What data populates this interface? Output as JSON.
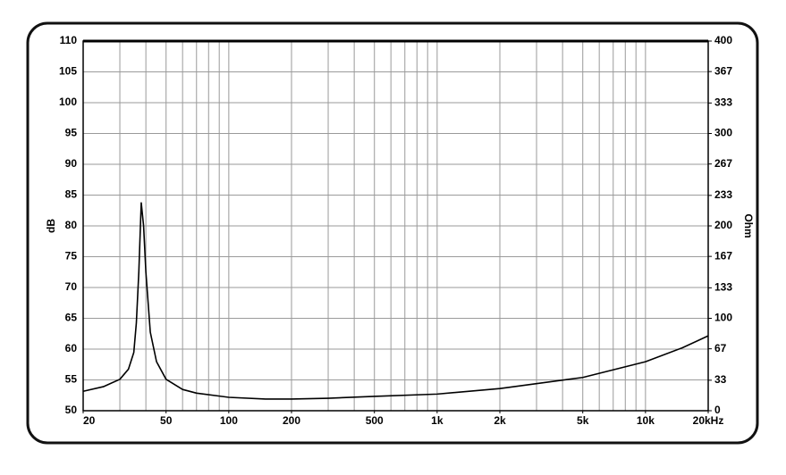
{
  "chart_data": {
    "type": "line",
    "y_label": "dB",
    "y2_label": "Ohm",
    "xscale": "log",
    "xlim": [
      20,
      20000
    ],
    "xticks": [
      20,
      50,
      100,
      200,
      500,
      {
        "value": 1000,
        "label": "1k"
      },
      {
        "value": 2000,
        "label": "2k"
      },
      {
        "value": 5000,
        "label": "5k"
      },
      {
        "value": 10000,
        "label": "10k"
      },
      {
        "value": 20000,
        "label": "20kHz"
      }
    ],
    "xgrid": [
      20,
      30,
      40,
      50,
      60,
      70,
      80,
      90,
      100,
      200,
      300,
      400,
      500,
      600,
      700,
      800,
      900,
      1000,
      2000,
      3000,
      4000,
      5000,
      6000,
      7000,
      8000,
      9000,
      10000,
      20000
    ],
    "ylim": [
      50,
      110
    ],
    "yticks": [
      50,
      55,
      60,
      65,
      70,
      75,
      80,
      85,
      90,
      95,
      100,
      105,
      110
    ],
    "y2lim": [
      0,
      400
    ],
    "y2ticks": [
      0,
      33,
      67,
      100,
      133,
      167,
      200,
      233,
      267,
      300,
      333,
      367,
      400
    ],
    "grid": true,
    "x": [
      20,
      25,
      30,
      33,
      35,
      36,
      37,
      38,
      39,
      40,
      42,
      45,
      50,
      60,
      70,
      100,
      150,
      200,
      300,
      500,
      1000,
      2000,
      5000,
      10000,
      15000,
      20000
    ],
    "series": [
      {
        "color": "#000000",
        "axis": "y2",
        "values": [
          21,
          26,
          34,
          45,
          63,
          95,
          150,
          225,
          200,
          150,
          85,
          53,
          34,
          23,
          19,
          14.5,
          12.6,
          12.6,
          13.5,
          15.5,
          18,
          24,
          36,
          53,
          68,
          81
        ]
      }
    ]
  }
}
